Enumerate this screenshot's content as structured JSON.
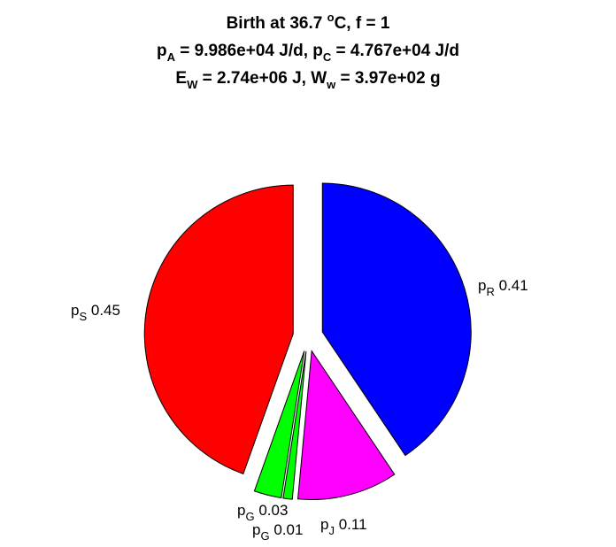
{
  "chart_data": {
    "type": "pie",
    "title_lines": [
      [
        {
          "text": "Birth at 36.7 "
        },
        {
          "text": "o",
          "shift": "super"
        },
        {
          "text": "C, f = 1"
        }
      ],
      [
        {
          "text": "p"
        },
        {
          "text": "A",
          "shift": "sub"
        },
        {
          "text": " = 9.986e+04 J/d, p"
        },
        {
          "text": "C",
          "shift": "sub"
        },
        {
          "text": " = 4.767e+04 J/d"
        }
      ],
      [
        {
          "text": "E"
        },
        {
          "text": "W",
          "shift": "sub"
        },
        {
          "text": " = 2.74e+06 J, W"
        },
        {
          "text": "w",
          "shift": "sub"
        },
        {
          "text": " = 3.97e+02 g"
        }
      ]
    ],
    "slices": [
      {
        "name": "p",
        "sub": "R",
        "value_label": "0.41",
        "value": 0.41,
        "color": "#0000ff"
      },
      {
        "name": "p",
        "sub": "J",
        "value_label": "0.11",
        "value": 0.11,
        "color": "#ff00ff"
      },
      {
        "name": "p",
        "sub": "G",
        "value_label": "0.01",
        "value": 0.01,
        "color": "#00ff00"
      },
      {
        "name": "p",
        "sub": "G",
        "value_label": "0.03",
        "value": 0.03,
        "color": "#00ff00"
      },
      {
        "name": "p",
        "sub": "S",
        "value_label": "0.45",
        "value": 0.45,
        "color": "#ff0000"
      }
    ],
    "exploded": true,
    "start": "12 o'clock",
    "direction": "clockwise"
  }
}
